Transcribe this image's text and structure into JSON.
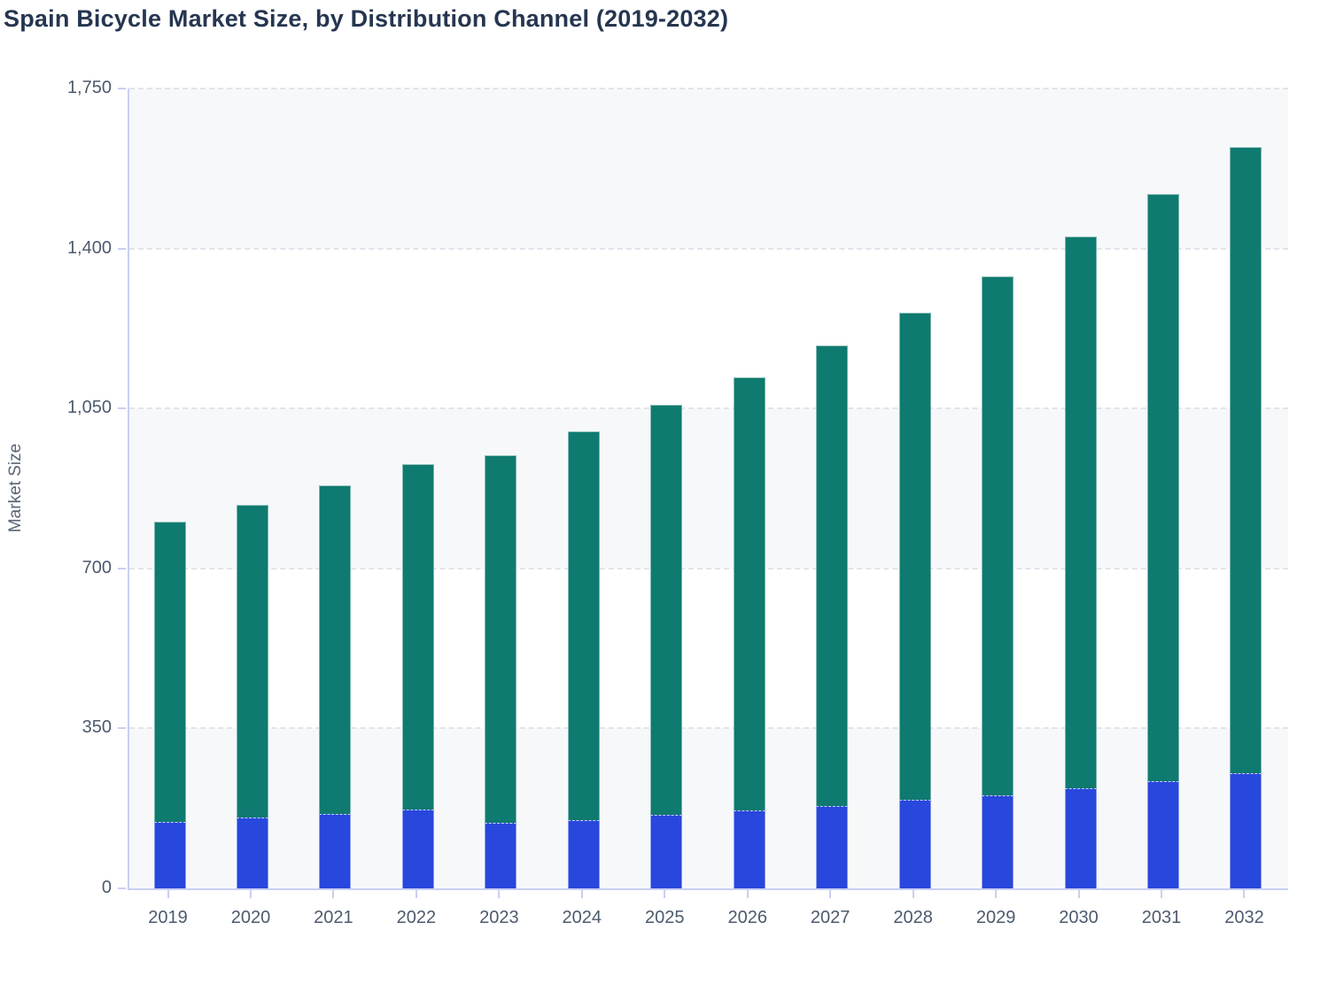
{
  "header": {
    "title": "Spain Bicycle Market Size, by Distribution Channel (2019-2032)"
  },
  "chart_data": {
    "type": "bar",
    "stacked": true,
    "title": "Spain Bicycle Market Size, by Distribution Channel (2019-2032)",
    "xlabel": "",
    "ylabel": "Market Size",
    "categories": [
      "2019",
      "2020",
      "2021",
      "2022",
      "2023",
      "2024",
      "2025",
      "2026",
      "2027",
      "2028",
      "2029",
      "2030",
      "2031",
      "2032"
    ],
    "series": [
      {
        "name": "bottom-segment",
        "color": "#2847dc",
        "values": [
          145,
          156,
          163,
          172,
          143,
          150,
          160,
          170,
          180,
          193,
          204,
          219,
          234,
          251
        ]
      },
      {
        "name": "top-segment",
        "color": "#0f7a70",
        "values": [
          657,
          684,
          718,
          756,
          804,
          850,
          898,
          949,
          1008,
          1067,
          1136,
          1207,
          1285,
          1372
        ]
      }
    ],
    "totals": [
      802,
      840,
      881,
      928,
      947,
      1000,
      1058,
      1119,
      1188,
      1260,
      1340,
      1426,
      1519,
      1623
    ],
    "ylim": [
      0,
      1750
    ],
    "yticks": [
      0,
      350,
      700,
      1050,
      1400,
      1750
    ],
    "ytick_labels": [
      "0",
      "350",
      "700",
      "1,050",
      "1,400",
      "1,750"
    ],
    "grid": "horizontal-dashed",
    "band_fill_color": "#f7f8fa",
    "axis_color": "#c9cff2",
    "gridline_color": "#e1e4ea",
    "tick_label_color": "#4d5a6e",
    "title_color": "#263650",
    "legend": "none"
  }
}
